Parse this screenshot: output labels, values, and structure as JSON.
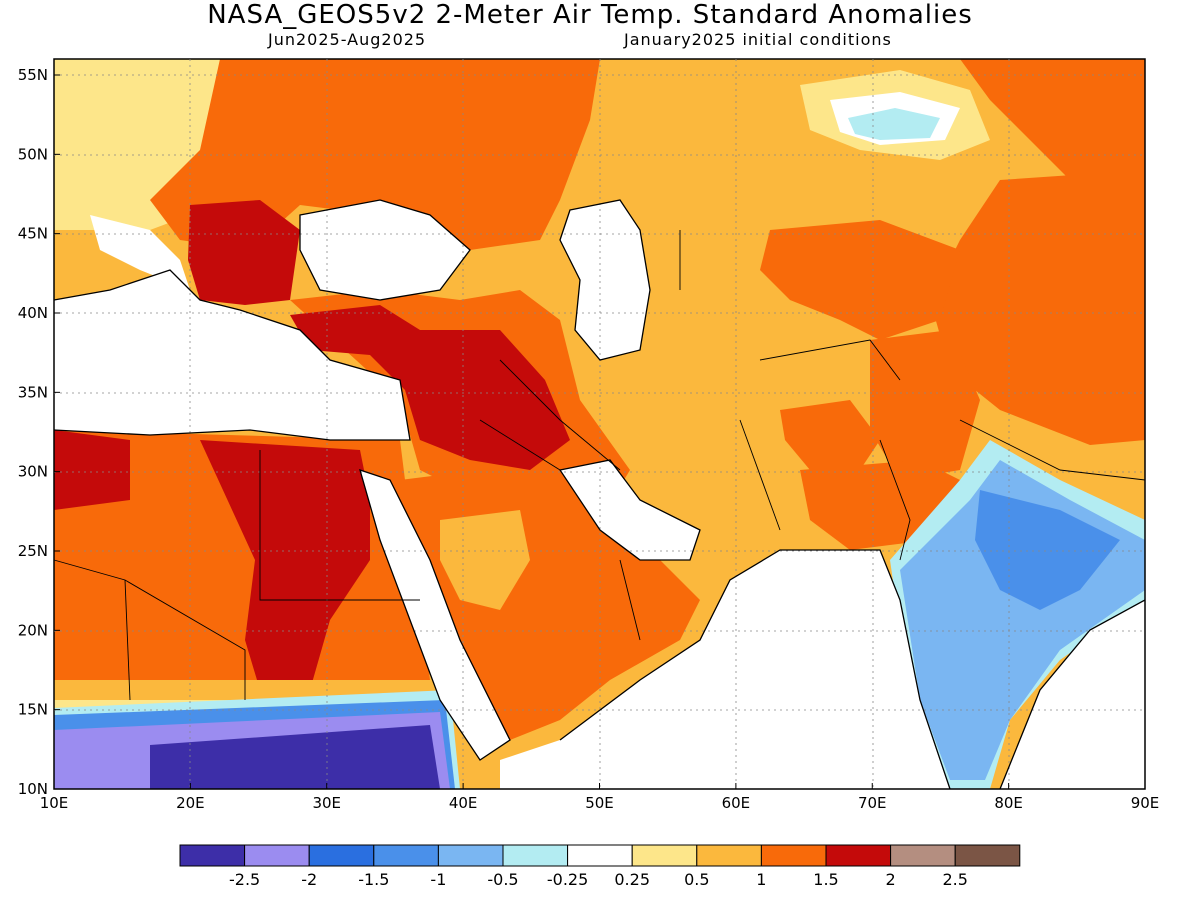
{
  "title": "NASA_GEOS5v2 2-Meter Air Temp. Standard Anomalies",
  "period": "Jun2025-Aug2025",
  "init": "January2025 initial conditions",
  "map": {
    "lon_ticks": [
      "10E",
      "20E",
      "30E",
      "40E",
      "50E",
      "60E",
      "70E",
      "80E",
      "90E"
    ],
    "lat_ticks": [
      "55N",
      "50N",
      "45N",
      "40N",
      "35N",
      "30N",
      "25N",
      "20N",
      "15N",
      "10N"
    ]
  },
  "colors": {
    "vneg3": "#3d2ea8",
    "vneg2": "#9b8cf0",
    "vneg15": "#2a6fe0",
    "vneg1": "#4a90ea",
    "vneg05": "#7ab6f2",
    "vneg025": "#b3ecf2",
    "neutral": "#ffffff",
    "pos025": "#fde68a",
    "pos05": "#fbb83d",
    "pos1": "#f86a0a",
    "pos15": "#c40a0a",
    "pos2": "#b48e80",
    "pos25": "#7b5545"
  },
  "colorbar": {
    "swatches": [
      "#3d2ea8",
      "#9b8cf0",
      "#2a6fe0",
      "#4a90ea",
      "#7ab6f2",
      "#b3ecf2",
      "#ffffff",
      "#fde68a",
      "#fbb83d",
      "#f86a0a",
      "#c40a0a",
      "#b48e80",
      "#7b5545"
    ],
    "labels": [
      "-2.5",
      "-2",
      "-1.5",
      "-1",
      "-0.5",
      "-0.25",
      "0.25",
      "0.5",
      "1",
      "1.5",
      "2",
      "2.5"
    ]
  }
}
